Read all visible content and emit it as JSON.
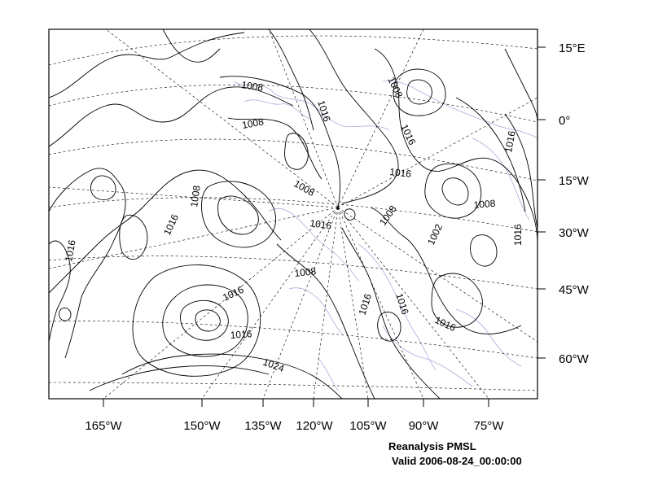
{
  "map": {
    "projection_grid": "dashed lat/lon graticule",
    "colors": {
      "contour": "#000000",
      "coastline": "#b7a6d8",
      "graticule": "#000000"
    },
    "longitude_labels": [
      "165°W",
      "150°W",
      "135°W",
      "120°W",
      "105°W",
      "90°W",
      "75°W"
    ],
    "latitude_labels": [
      "15°E",
      "0°",
      "15°W",
      "30°W",
      "45°W",
      "60°W"
    ],
    "contour_labels": [
      "1008",
      "1008",
      "1016",
      "1008",
      "1016",
      "1016",
      "1008",
      "1016",
      "1016",
      "1008",
      "1016",
      "1008",
      "1016",
      "1002",
      "1016",
      "1008",
      "1016",
      "1016",
      "1016",
      "1008",
      "1016",
      "1024",
      "1016"
    ]
  },
  "caption": {
    "title": "Reanalysis PMSL",
    "valid": "Valid 2006-08-24_00:00:00"
  }
}
